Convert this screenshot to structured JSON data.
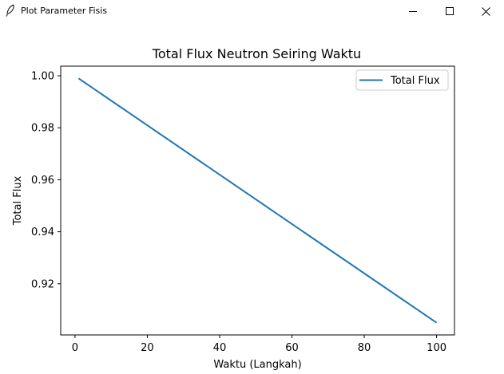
{
  "window": {
    "title": "Plot Parameter Fisis",
    "icon": "feather-icon",
    "controls": {
      "minimize_icon": "minimize-icon",
      "maximize_icon": "maximize-icon",
      "close_icon": "close-icon"
    }
  },
  "chart_data": {
    "type": "line",
    "title": "Total Flux Neutron Seiring Waktu",
    "xlabel": "Waktu (Langkah)",
    "ylabel": "Total Flux",
    "xlim": [
      -3.95,
      104.95
    ],
    "ylim": [
      0.9003,
      1.0037
    ],
    "xticks": [
      0,
      20,
      40,
      60,
      80,
      100
    ],
    "xtick_labels": [
      "0",
      "20",
      "40",
      "60",
      "80",
      "100"
    ],
    "yticks": [
      0.92,
      0.94,
      0.96,
      0.98,
      1.0
    ],
    "ytick_labels": [
      "0.92",
      "0.94",
      "0.96",
      "0.98",
      "1.00"
    ],
    "grid": false,
    "legend": {
      "placement": "top-right"
    },
    "series": [
      {
        "name": "Total Flux",
        "color": "#1f77b4",
        "x": [
          1,
          100
        ],
        "y": [
          0.999,
          0.905
        ]
      }
    ]
  }
}
